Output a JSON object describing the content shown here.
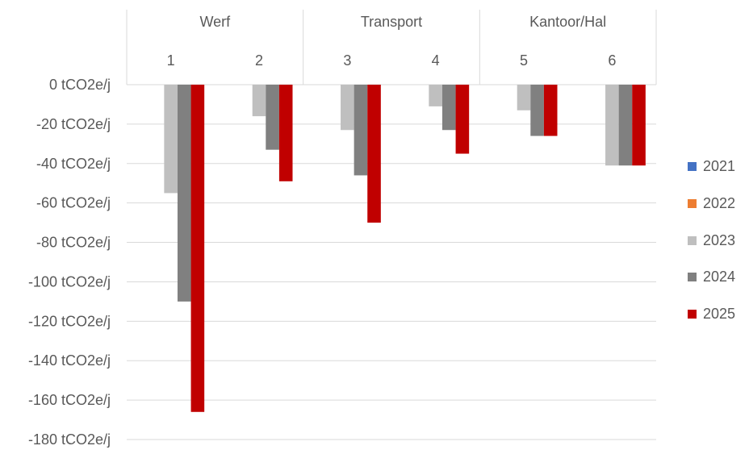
{
  "chart_data": {
    "type": "bar",
    "groups": [
      {
        "label": "Werf",
        "categories": [
          "1",
          "2"
        ]
      },
      {
        "label": "Transport",
        "categories": [
          "3",
          "4"
        ]
      },
      {
        "label": "Kantoor/Hal",
        "categories": [
          "5",
          "6"
        ]
      }
    ],
    "categories": [
      "1",
      "2",
      "3",
      "4",
      "5",
      "6"
    ],
    "series": [
      {
        "name": "2021",
        "color": "#4472C4",
        "values": [
          0,
          0,
          0,
          0,
          0,
          0
        ]
      },
      {
        "name": "2022",
        "color": "#ED7D31",
        "values": [
          0,
          0,
          0,
          0,
          0,
          0
        ]
      },
      {
        "name": "2023",
        "color": "#BFBFBF",
        "values": [
          -55,
          -16,
          -23,
          -11,
          -13,
          -41
        ]
      },
      {
        "name": "2024",
        "color": "#808080",
        "values": [
          -110,
          -33,
          -46,
          -23,
          -26,
          -41
        ]
      },
      {
        "name": "2025",
        "color": "#C00000",
        "values": [
          -166,
          -49,
          -70,
          -35,
          -26,
          -41
        ]
      }
    ],
    "yticks": [
      0,
      -20,
      -40,
      -60,
      -80,
      -100,
      -120,
      -140,
      -160,
      -180
    ],
    "ytick_labels": [
      "0 tCO2e/j",
      "-20 tCO2e/j",
      "-40 tCO2e/j",
      "-60 tCO2e/j",
      "-80 tCO2e/j",
      "-100 tCO2e/j",
      "-120 tCO2e/j",
      "-140 tCO2e/j",
      "-160 tCO2e/j",
      "-180 tCO2e/j"
    ],
    "ylim": [
      -180,
      0
    ],
    "grid": true,
    "legend_position": "right",
    "title": "",
    "xlabel": "",
    "ylabel": ""
  }
}
